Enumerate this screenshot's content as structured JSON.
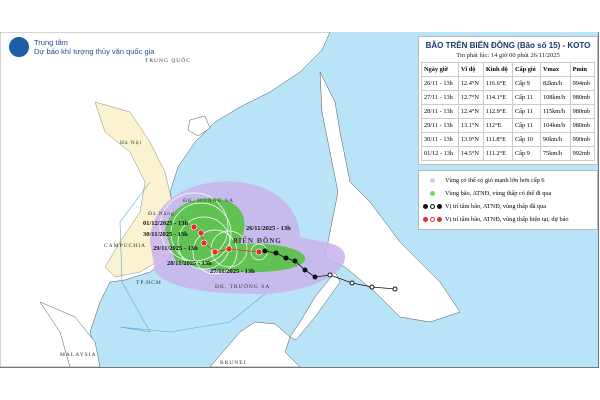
{
  "header": {
    "org_line1": "Trung tâm",
    "org_line2": "Dự báo khí tượng thủy văn quốc gia",
    "logo_text": "NCHMF"
  },
  "panel": {
    "title": "BÃO TRÊN BIỂN ĐÔNG (Bão số 15) - KOTO",
    "subtitle": "Tin phát lúc: 14 giờ 00 phút 26/11/2025",
    "columns": [
      "Ngày giờ",
      "Vĩ độ",
      "Kinh độ",
      "Cấp gió",
      "Vmax",
      "Pmin"
    ],
    "rows": [
      [
        "26/11 - 13h",
        "12.4°N",
        "116.6°E",
        "Cấp 9",
        "82km/h",
        "994mb"
      ],
      [
        "27/11 - 13h",
        "12.7°N",
        "114.1°E",
        "Cấp 11",
        "108km/h",
        "980mb"
      ],
      [
        "28/11 - 13h",
        "12.4°N",
        "112.9°E",
        "Cấp 11",
        "115km/h",
        "980mb"
      ],
      [
        "29/11 - 13h",
        "13.1°N",
        "112°E",
        "Cấp 11",
        "104km/h",
        "980mb"
      ],
      [
        "30/11 - 13h",
        "13.9°N",
        "111.8°E",
        "Cấp 10",
        "90km/h",
        "990mb"
      ],
      [
        "01/12 - 13h",
        "14.5°N",
        "111.2°E",
        "Cấp 9",
        "75km/h",
        "992mb"
      ]
    ]
  },
  "legend": [
    {
      "text": "Vùng có thể có gió mạnh lớn hơn cấp 6",
      "color": "#d6c8f0"
    },
    {
      "text": "Vùng bão, ATNĐ, vùng thấp có thể đi qua",
      "color": "#7dd36b"
    },
    {
      "text": "Vị trí tâm bão, ATNĐ, vùng thấp đã qua",
      "color": "#111111"
    },
    {
      "text": "Vị trí tâm bão, ATNĐ, vùng thấp hiện tại, dự báo",
      "color": "#e0312b"
    }
  ],
  "map_labels": {
    "china": "TRUNG QUỐC",
    "hanoi": "Hà Nội",
    "danang": "Đà Nẵng",
    "hcm": "TP.HCM",
    "cambodia": "CAMPUCHIA",
    "east_sea": "BIỂN ĐÔNG",
    "paracel": "ĐK. HOÀNG SA",
    "spratly": "ĐK. TRƯỜNG SA",
    "malaysia": "MALAYSIA",
    "brunei": "BRUNEI"
  },
  "track_labels": [
    "26/11/2025 - 13h",
    "27/11/2025 - 13h",
    "28/11/2025 - 13h",
    "29/11/2025 - 13h",
    "30/11/2025 - 13h",
    "01/12/2025 - 13h"
  ],
  "colors": {
    "sea": "#b9e3f7",
    "wind_zone": "#c9b6ec",
    "storm_zone": "#5cc24a",
    "forecast_point": "#e0312b",
    "past_track": "#111111"
  }
}
